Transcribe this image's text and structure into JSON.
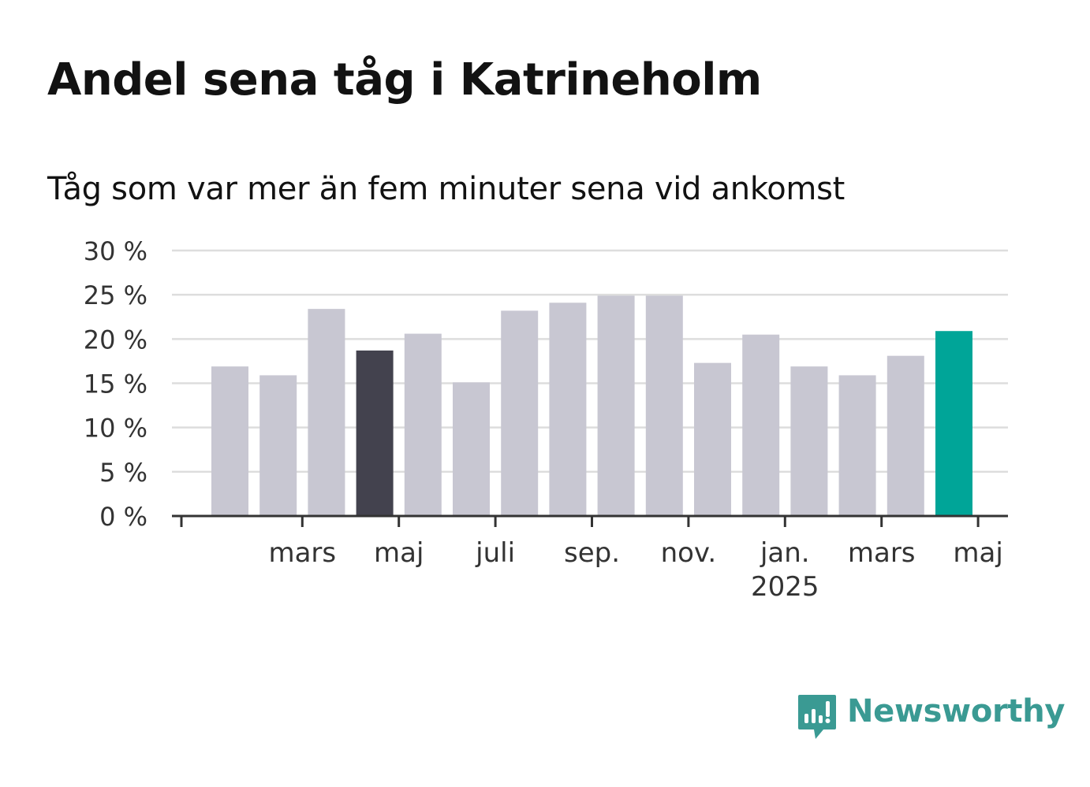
{
  "header": {
    "title": "Andel sena tåg i Katrineholm",
    "subtitle": "Tåg som var mer än fem minuter sena vid ankomst"
  },
  "chart_data": {
    "type": "bar",
    "values": [
      16.9,
      15.9,
      23.4,
      18.7,
      20.6,
      15.1,
      23.2,
      24.1,
      24.9,
      24.9,
      17.3,
      20.5,
      16.9,
      15.9,
      18.1,
      20.9
    ],
    "bar_colors": [
      "#c8c7d2",
      "#c8c7d2",
      "#c8c7d2",
      "#43424e",
      "#c8c7d2",
      "#c8c7d2",
      "#c8c7d2",
      "#c8c7d2",
      "#c8c7d2",
      "#c8c7d2",
      "#c8c7d2",
      "#c8c7d2",
      "#c8c7d2",
      "#c8c7d2",
      "#c8c7d2",
      "#00a598"
    ],
    "x_tick_labels": [
      {
        "index": 1.5,
        "label": "mars",
        "sub": ""
      },
      {
        "index": 3.5,
        "label": "maj",
        "sub": ""
      },
      {
        "index": 5.5,
        "label": "juli",
        "sub": ""
      },
      {
        "index": 7.5,
        "label": "sep.",
        "sub": ""
      },
      {
        "index": 9.5,
        "label": "nov.",
        "sub": ""
      },
      {
        "index": 11.5,
        "label": "jan.",
        "sub": "2025"
      },
      {
        "index": 13.5,
        "label": "mars",
        "sub": ""
      },
      {
        "index": 15.5,
        "label": "maj",
        "sub": ""
      }
    ],
    "y_ticks": [
      0,
      5,
      10,
      15,
      20,
      25,
      30
    ],
    "y_tick_labels": [
      "0 %",
      "5 %",
      "10 %",
      "15 %",
      "20 %",
      "25 %",
      "30 %"
    ],
    "ylim": [
      0,
      30
    ],
    "grid": true,
    "colors": {
      "default_bar": "#c8c7d2",
      "highlight_dark": "#43424e",
      "highlight_accent": "#00a598",
      "gridline": "#dddddd",
      "axis": "#333333"
    }
  },
  "branding": {
    "logo_name": "Newsworthy",
    "logo_icon": "newsworthy-logo-icon",
    "color": "#3a9a93"
  }
}
